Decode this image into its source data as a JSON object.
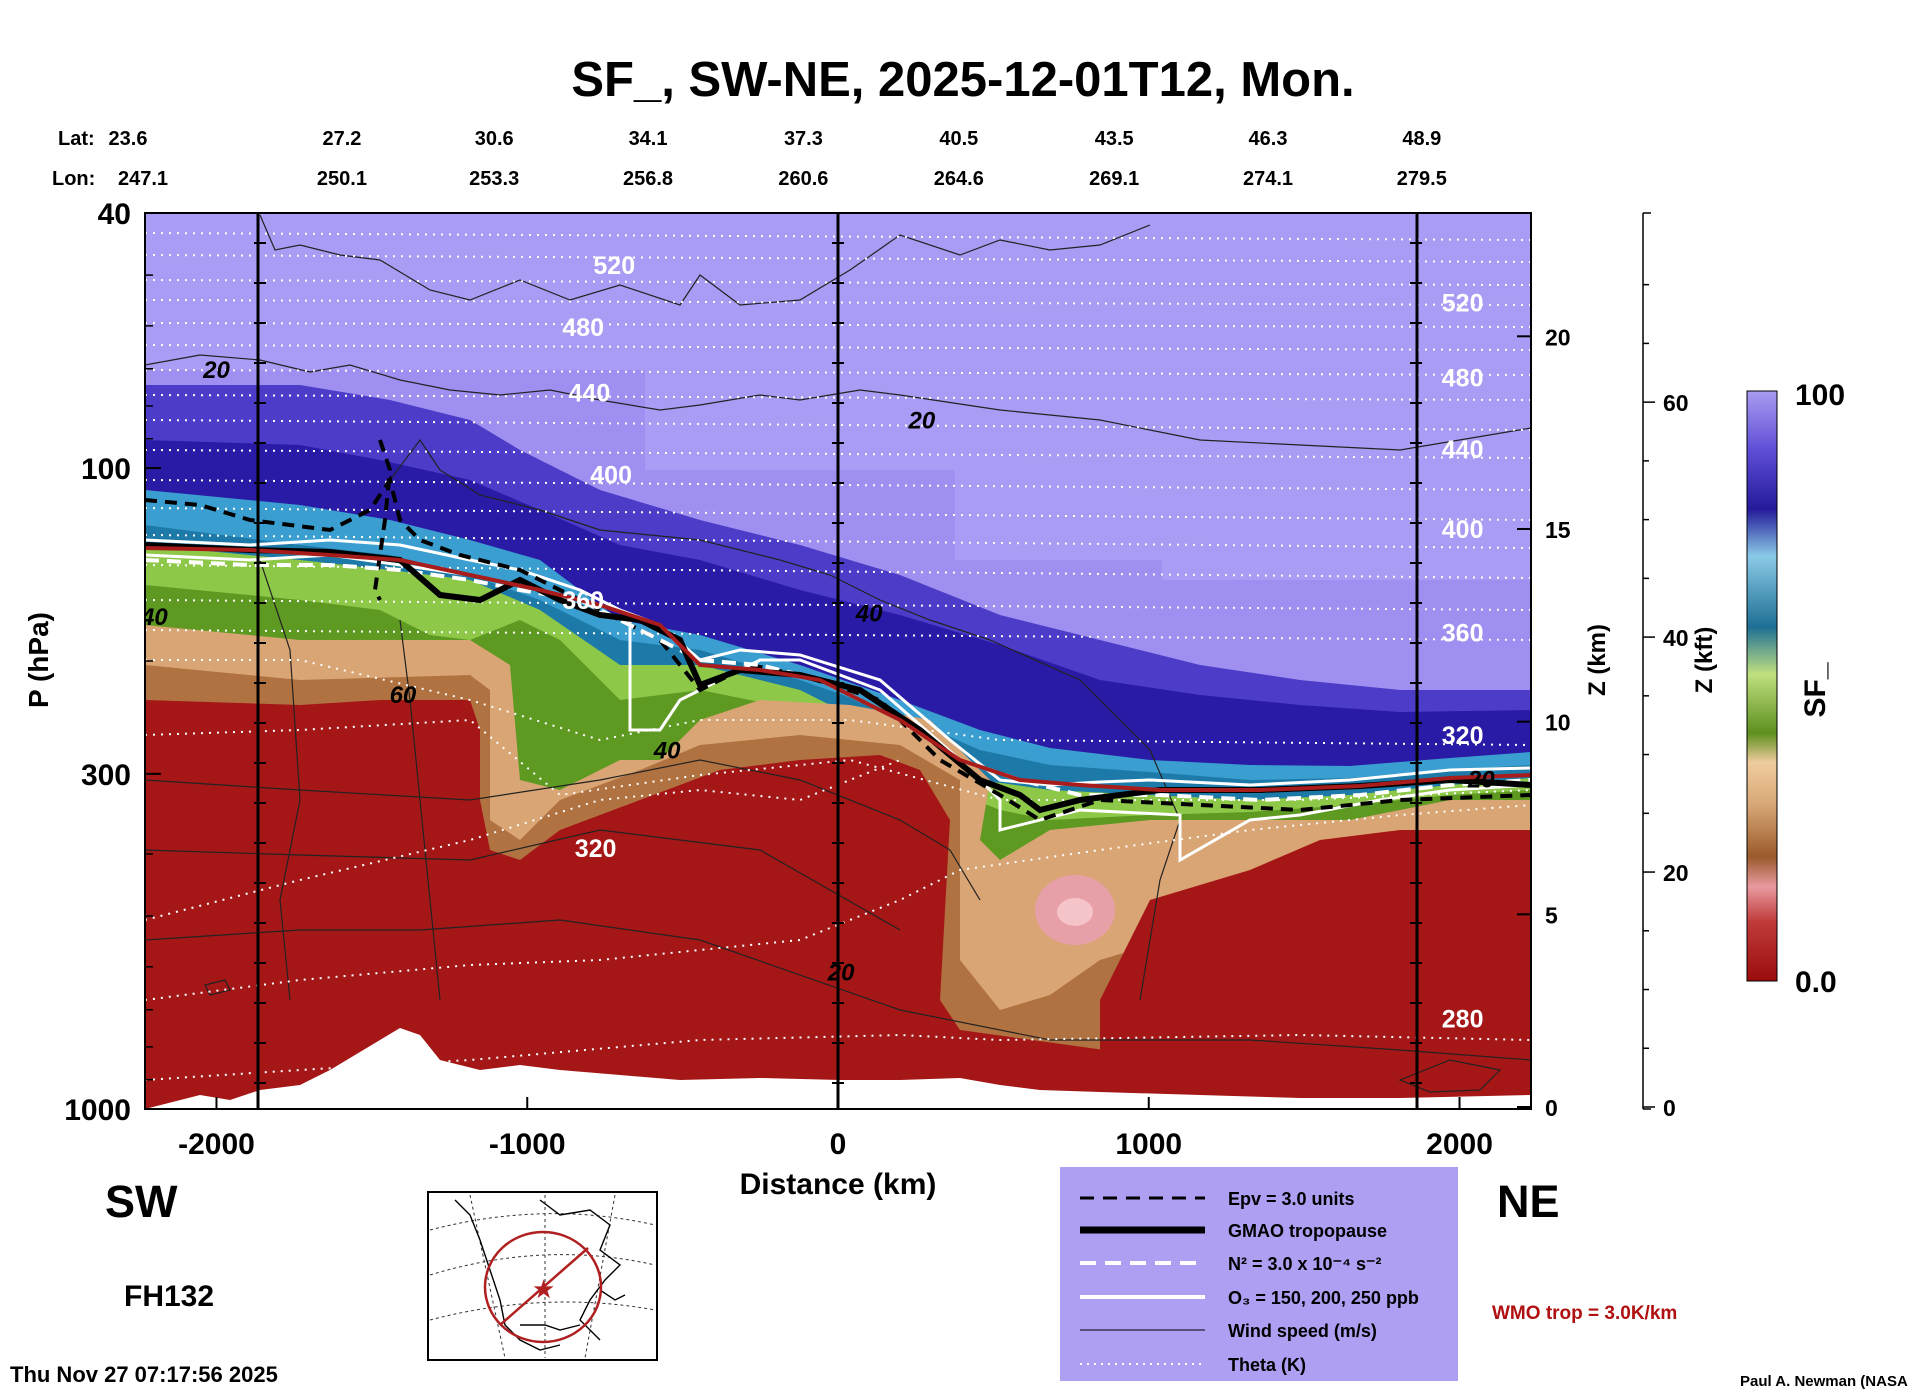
{
  "title": "SF_, SW-NE, 2025-12-01T12, Mon.",
  "geo": {
    "lat_label": "Lat:",
    "lon_label": "Lon:",
    "lat": [
      "23.6",
      "27.2",
      "30.6",
      "34.1",
      "37.3",
      "40.5",
      "43.5",
      "46.3",
      "48.9"
    ],
    "lon": [
      "247.1",
      "250.1",
      "253.3",
      "256.8",
      "260.6",
      "264.6",
      "269.1",
      "274.1",
      "279.5"
    ]
  },
  "axes": {
    "ylabel": "P (hPa)",
    "xlabel": "Distance (km)",
    "z_km_label": "Z (km)",
    "z_kft_label": "Z (kft)",
    "colorbar_label": "SF_",
    "colorbar_max": "100",
    "colorbar_min": "0.0"
  },
  "annotations": {
    "sw": "SW",
    "ne": "NE",
    "forecast_hour": "FH132",
    "timestamp": "Thu Nov 27 07:17:56 2025",
    "credit": "Paul A. Newman (NASA",
    "wmo_trop": "WMO trop = 3.0K/km"
  },
  "legend": {
    "items": [
      "Epv = 3.0 units",
      "GMAO tropopause",
      "N² = 3.0 x 10⁻⁴ s⁻²",
      "O₃ = 150, 200, 250 ppb",
      "Wind speed (m/s)",
      "Theta (K)"
    ]
  },
  "colors": {
    "panel_bg": "#ae9ff2",
    "stratosphere": "#a99cf4",
    "deep_purple": "#2e1fa8",
    "blue": "#2f8fc4",
    "green": "#7fb83c",
    "tan": "#c48a56",
    "red": "#a51616",
    "trop_red": "#a81c1c",
    "wmo_text": "#b01010"
  },
  "chart_data": {
    "type": "heatmap",
    "title": "SF_, SW-NE, 2025-12-01T12, Mon.",
    "xlabel": "Distance (km)",
    "ylabel": "P (hPa)",
    "x_ticks": [
      -2000,
      -1000,
      0,
      1000,
      2000
    ],
    "x_range": [
      -2230,
      2230
    ],
    "y_scale": "log",
    "y_ticks": [
      40,
      100,
      300,
      1000
    ],
    "y_range": [
      40,
      1000
    ],
    "z_km_ticks": [
      0,
      5,
      10,
      15,
      20
    ],
    "z_kft_ticks": [
      0,
      20,
      40,
      60
    ],
    "colorbar_range": [
      0.0,
      100
    ],
    "colorbar_label": "SF_",
    "section_markers_km": [
      -1860,
      0,
      1860
    ],
    "theta_labels": [
      {
        "x": -720,
        "p": 48,
        "text": "520"
      },
      {
        "x": -820,
        "p": 60,
        "text": "480"
      },
      {
        "x": -800,
        "p": 76,
        "text": "440"
      },
      {
        "x": -730,
        "p": 102,
        "text": "400"
      },
      {
        "x": -820,
        "p": 160,
        "text": "360"
      },
      {
        "x": -780,
        "p": 390,
        "text": "320"
      },
      {
        "x": 2010,
        "p": 55,
        "text": "520"
      },
      {
        "x": 2010,
        "p": 72,
        "text": "480"
      },
      {
        "x": 2010,
        "p": 93,
        "text": "440"
      },
      {
        "x": 2010,
        "p": 124,
        "text": "400"
      },
      {
        "x": 2010,
        "p": 180,
        "text": "360"
      },
      {
        "x": 2010,
        "p": 260,
        "text": "320"
      },
      {
        "x": 2010,
        "p": 720,
        "text": "280"
      }
    ],
    "wind_labels": [
      {
        "x": -2000,
        "p": 70,
        "text": "20"
      },
      {
        "x": 270,
        "p": 84,
        "text": "20"
      },
      {
        "x": 100,
        "p": 168,
        "text": "40"
      },
      {
        "x": -2200,
        "p": 170,
        "text": "40"
      },
      {
        "x": -1400,
        "p": 225,
        "text": "60"
      },
      {
        "x": -550,
        "p": 275,
        "text": "40"
      },
      {
        "x": 2070,
        "p": 305,
        "text": "20"
      },
      {
        "x": 10,
        "p": 610,
        "text": "20"
      }
    ],
    "gmao_tropopause_hpa": [
      {
        "x": -2230,
        "p": 133
      },
      {
        "x": -1900,
        "p": 138
      },
      {
        "x": -1700,
        "p": 142
      },
      {
        "x": -1500,
        "p": 145
      },
      {
        "x": -1300,
        "p": 160
      },
      {
        "x": -1150,
        "p": 165
      },
      {
        "x": -1000,
        "p": 168
      },
      {
        "x": -900,
        "p": 175
      },
      {
        "x": -700,
        "p": 182
      },
      {
        "x": -550,
        "p": 190
      },
      {
        "x": -450,
        "p": 215
      },
      {
        "x": -350,
        "p": 212
      },
      {
        "x": -200,
        "p": 218
      },
      {
        "x": 0,
        "p": 225
      },
      {
        "x": 200,
        "p": 235
      },
      {
        "x": 400,
        "p": 255
      },
      {
        "x": 550,
        "p": 300
      },
      {
        "x": 620,
        "p": 335
      },
      {
        "x": 800,
        "p": 320
      },
      {
        "x": 1000,
        "p": 325
      },
      {
        "x": 1200,
        "p": 318
      },
      {
        "x": 1400,
        "p": 312
      },
      {
        "x": 1600,
        "p": 310
      },
      {
        "x": 1800,
        "p": 300
      },
      {
        "x": 2230,
        "p": 300
      }
    ]
  }
}
